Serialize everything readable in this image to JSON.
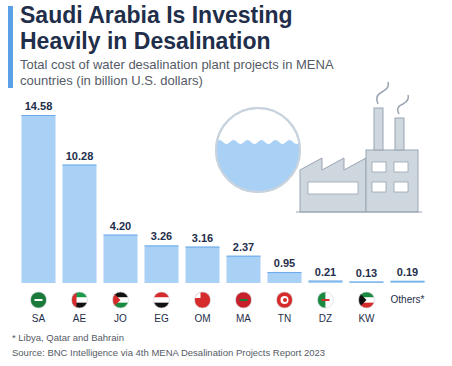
{
  "chart_data": {
    "type": "bar",
    "title": "Saudi Arabia Is Investing Heavily in Desalination",
    "subtitle": "Total cost of water desalination plant projects in MENA countries (in billion U.S. dollars)",
    "categories": [
      "SA",
      "AE",
      "JO",
      "EG",
      "OM",
      "MA",
      "TN",
      "DZ",
      "KW",
      "Others*"
    ],
    "values": [
      14.58,
      10.28,
      4.2,
      3.26,
      3.16,
      2.37,
      0.95,
      0.21,
      0.13,
      0.19
    ],
    "value_labels": [
      "14.58",
      "10.28",
      "4.20",
      "3.26",
      "3.16",
      "2.37",
      "0.95",
      "0.21",
      "0.13",
      "0.19"
    ],
    "color": "#a9d0f5",
    "data_labels": true,
    "tick_labels": false,
    "grid": false,
    "footnote": "* Libya, Qatar and Bahrain",
    "source": "Source: BNC Intelligence via 4th MENA Desalination Projects Report 2023"
  }
}
